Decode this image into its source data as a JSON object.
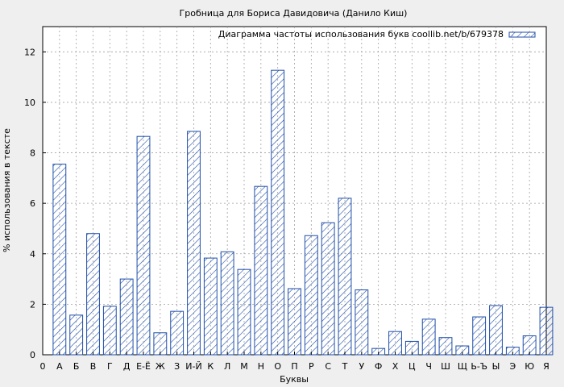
{
  "chart_data": {
    "type": "bar",
    "title": "Гробница для Бориса Давидовича (Данило Киш)",
    "xlabel": "Буквы",
    "ylabel": "% использования в тексте",
    "legend": {
      "label": "Диаграмма частоты использования букв coollib.net/b/679378",
      "position": "top-right"
    },
    "x_tick_labels": [
      "0",
      "А",
      "Б",
      "В",
      "Г",
      "Д",
      "Е-Ё",
      "Ж",
      "З",
      "И-Й",
      "К",
      "Л",
      "М",
      "Н",
      "О",
      "П",
      "Р",
      "С",
      "Т",
      "У",
      "Ф",
      "Х",
      "Ц",
      "Ч",
      "Ш",
      "Щ",
      "Ь-Ъ",
      "Ы",
      "Э",
      "Ю",
      "Я"
    ],
    "categories": [
      "А",
      "Б",
      "В",
      "Г",
      "Д",
      "Е-Ё",
      "Ж",
      "З",
      "И-Й",
      "К",
      "Л",
      "М",
      "Н",
      "О",
      "П",
      "Р",
      "С",
      "Т",
      "У",
      "Ф",
      "Х",
      "Ц",
      "Ч",
      "Ш",
      "Щ",
      "Ь-Ъ",
      "Ы",
      "Э",
      "Ю",
      "Я"
    ],
    "values": [
      7.55,
      1.57,
      4.8,
      1.92,
      3.0,
      8.65,
      0.87,
      1.72,
      8.85,
      3.83,
      4.08,
      3.38,
      6.67,
      11.27,
      2.62,
      4.72,
      5.23,
      6.2,
      2.57,
      0.25,
      0.92,
      0.53,
      1.41,
      0.68,
      0.35,
      1.5,
      1.95,
      0.3,
      0.75,
      1.88
    ],
    "y_ticks": [
      0,
      2,
      4,
      6,
      8,
      10,
      12
    ],
    "ylim": [
      0,
      13
    ],
    "grid": true,
    "colors": {
      "bar_stroke": "#1f4ea8",
      "background": "#efefef",
      "plot_bg": "#ffffff",
      "grid": "#a0a0a0"
    }
  }
}
